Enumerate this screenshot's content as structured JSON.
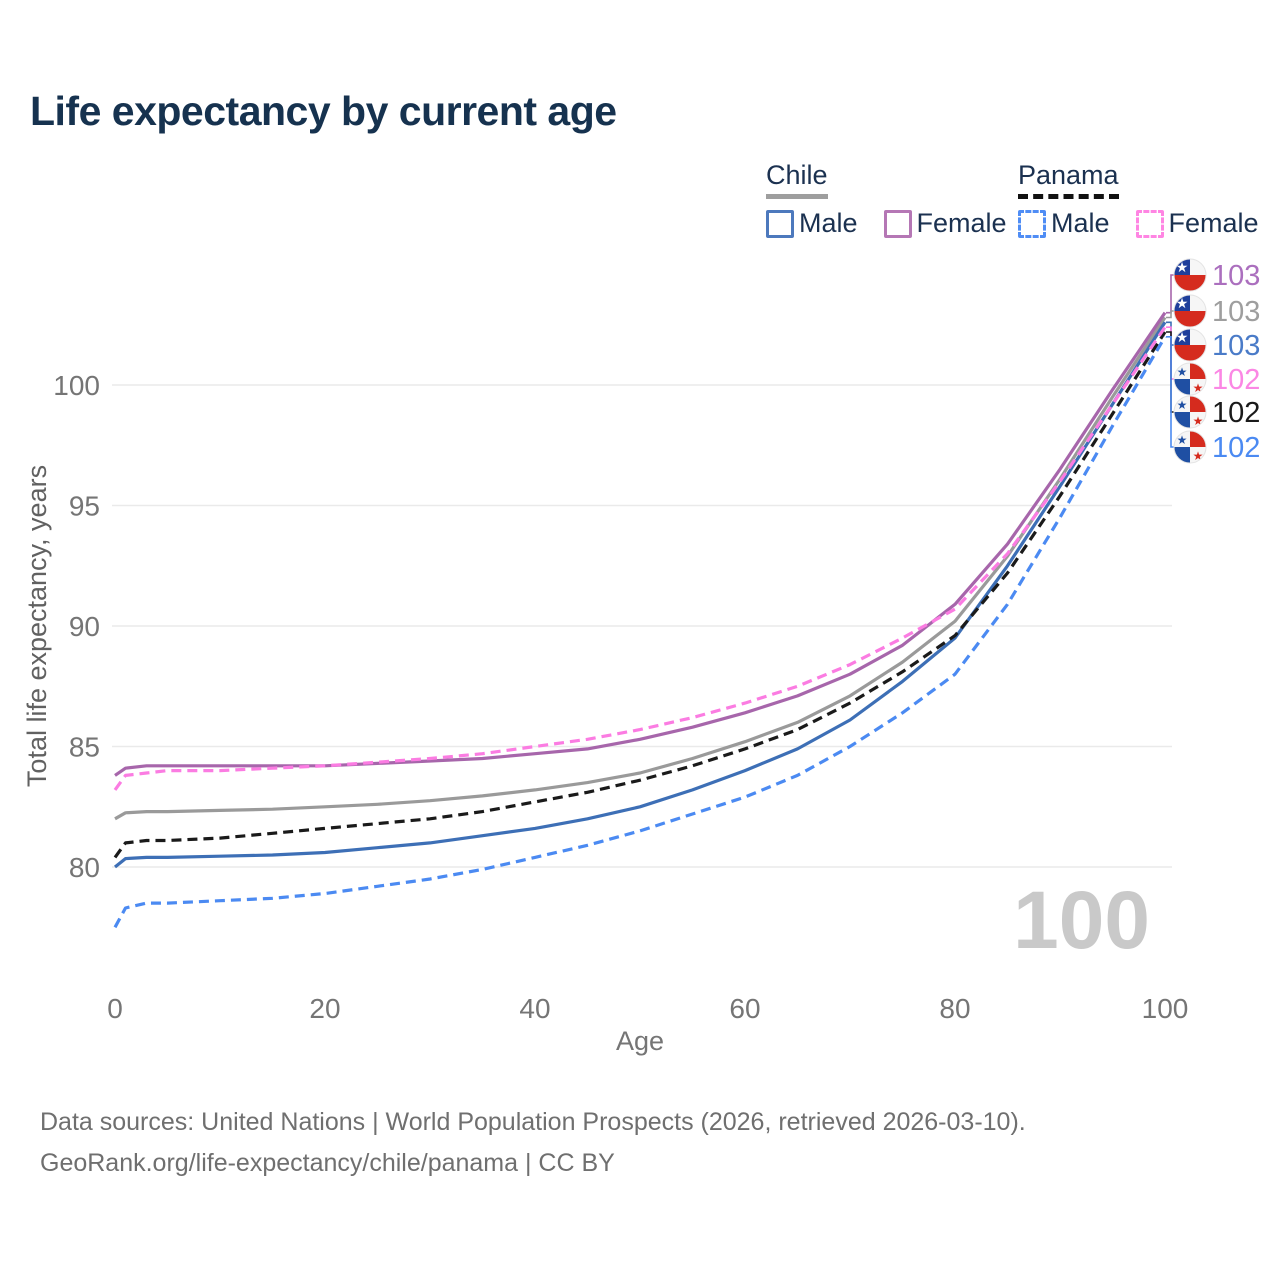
{
  "title": "Life expectancy by current age",
  "legend": {
    "groups": [
      {
        "name": "Chile",
        "line_style": "solid",
        "underline_color": "#9e9e9e",
        "items": [
          {
            "label": "Male",
            "color": "#4d79bd"
          },
          {
            "label": "Female",
            "color": "#b577b5"
          }
        ]
      },
      {
        "name": "Panama",
        "line_style": "dashed",
        "underline_color": "#111111",
        "items": [
          {
            "label": "Male",
            "color": "#4f8df5"
          },
          {
            "label": "Female",
            "color": "#ff85e3"
          }
        ]
      }
    ]
  },
  "chart_data": {
    "type": "line",
    "title": "Life expectancy by current age",
    "xlabel": "Age",
    "ylabel": "Total life expectancy, years",
    "xlim": [
      0,
      100
    ],
    "ylim": [
      77,
      103.5
    ],
    "x_ticks": [
      0,
      20,
      40,
      60,
      80,
      100
    ],
    "y_ticks": [
      80,
      85,
      90,
      95,
      100
    ],
    "grid": "horizontal-only",
    "legend_position": "top-right",
    "watermark": "100",
    "x": [
      0,
      1,
      3,
      5,
      10,
      15,
      20,
      25,
      30,
      35,
      40,
      45,
      50,
      55,
      60,
      65,
      70,
      75,
      80,
      85,
      90,
      95,
      100
    ],
    "series": [
      {
        "name": "Chile Female",
        "country": "Chile",
        "sex": "Female",
        "color": "#a766ab",
        "dash": false,
        "end_label": "103",
        "label_color": "#ab6fbe",
        "flag": "chile",
        "values": [
          83.8,
          84.1,
          84.2,
          84.2,
          84.2,
          84.2,
          84.2,
          84.3,
          84.4,
          84.5,
          84.7,
          84.9,
          85.3,
          85.8,
          86.4,
          87.1,
          88.0,
          89.2,
          90.9,
          93.4,
          96.5,
          99.8,
          103.0
        ]
      },
      {
        "name": "Chile Both sexes",
        "country": "Chile",
        "sex": "Both",
        "color": "#9a9a9a",
        "dash": false,
        "end_label": "103",
        "label_color": "#9e9e9e",
        "flag": "chile",
        "values": [
          82.0,
          82.25,
          82.3,
          82.3,
          82.35,
          82.4,
          82.5,
          82.6,
          82.75,
          82.95,
          83.2,
          83.5,
          83.9,
          84.5,
          85.2,
          86.0,
          87.1,
          88.5,
          90.2,
          92.9,
          96.1,
          99.5,
          102.8
        ]
      },
      {
        "name": "Chile Male",
        "country": "Chile",
        "sex": "Male",
        "color": "#3d6fb6",
        "dash": false,
        "end_label": "103",
        "label_color": "#4a7bc8",
        "flag": "chile",
        "values": [
          80.0,
          80.35,
          80.4,
          80.4,
          80.45,
          80.5,
          80.6,
          80.8,
          81.0,
          81.3,
          81.6,
          82.0,
          82.5,
          83.2,
          84.0,
          84.9,
          86.1,
          87.7,
          89.5,
          92.5,
          95.8,
          99.2,
          102.6
        ]
      },
      {
        "name": "Panama Female",
        "country": "Panama",
        "sex": "Female",
        "color": "#fb7ce2",
        "dash": true,
        "end_label": "102",
        "label_color": "#fb87e4",
        "flag": "panama",
        "values": [
          83.2,
          83.8,
          83.9,
          84.0,
          84.0,
          84.1,
          84.2,
          84.35,
          84.5,
          84.7,
          85.0,
          85.3,
          85.7,
          86.2,
          86.8,
          87.5,
          88.4,
          89.5,
          90.7,
          93.0,
          96.0,
          99.2,
          102.4
        ]
      },
      {
        "name": "Panama Both sexes",
        "country": "Panama",
        "sex": "Both",
        "color": "#1a1a1a",
        "dash": true,
        "end_label": "102",
        "label_color": "#1a1a1a",
        "flag": "panama",
        "values": [
          80.4,
          81.0,
          81.1,
          81.1,
          81.2,
          81.4,
          81.6,
          81.8,
          82.0,
          82.3,
          82.7,
          83.1,
          83.6,
          84.2,
          84.9,
          85.7,
          86.8,
          88.1,
          89.6,
          92.2,
          95.4,
          98.8,
          102.2
        ]
      },
      {
        "name": "Panama Male",
        "country": "Panama",
        "sex": "Male",
        "color": "#4b8af2",
        "dash": true,
        "end_label": "102",
        "label_color": "#4b8af2",
        "flag": "panama",
        "values": [
          77.5,
          78.3,
          78.5,
          78.5,
          78.6,
          78.7,
          78.9,
          79.2,
          79.5,
          79.9,
          80.4,
          80.9,
          81.5,
          82.2,
          82.9,
          83.8,
          85.0,
          86.4,
          88.0,
          90.9,
          94.5,
          98.3,
          102.0
        ]
      }
    ]
  },
  "footer": {
    "line1": "Data sources: United Nations | World Population Prospects (2026, retrieved 2026-03-10).",
    "line2": "GeoRank.org/life-expectancy/chile/panama | CC BY"
  }
}
